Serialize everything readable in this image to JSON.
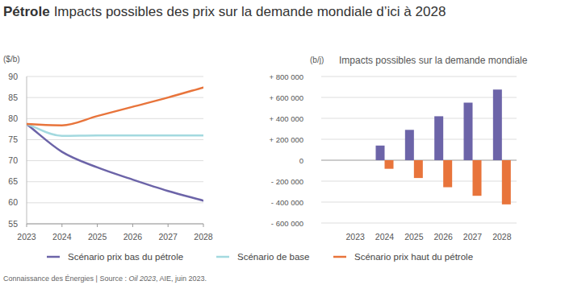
{
  "page": {
    "title_bold": "Pétrole",
    "title": "Impacts possibles des prix sur la demande mondiale d’ici à 2028",
    "source_prefix": "Connaissance des Énergies | Source : ",
    "source_italic": "Oil 2023",
    "source_suffix": ", AIE, juin 2023."
  },
  "chart_data": [
    {
      "type": "line",
      "y_label": "($/b)",
      "x": [
        2023,
        2024,
        2025,
        2026,
        2027,
        2028
      ],
      "xlim": [
        2023,
        2028
      ],
      "xticks": [
        2023,
        2024,
        2025,
        2026,
        2027,
        2028
      ],
      "ylim": [
        55,
        90
      ],
      "yticks": [
        55,
        60,
        65,
        70,
        75,
        80,
        85,
        90
      ],
      "grid": true,
      "legend": "bottom",
      "series": [
        {
          "name": "Scénario prix bas du pétrole",
          "color": "#6c64a8",
          "values": [
            78.7,
            72.1,
            68.4,
            65.5,
            62.8,
            60.5
          ]
        },
        {
          "name": "Scénario de base",
          "color": "#a3d9df",
          "values": [
            78.7,
            75.9,
            76.0,
            76.0,
            76.0,
            76.0
          ]
        },
        {
          "name": "Scénario prix haut du pétrole",
          "color": "#e8743b",
          "values": [
            78.7,
            78.4,
            80.6,
            82.8,
            85.0,
            87.4
          ]
        }
      ]
    },
    {
      "type": "bar",
      "subtitle": "Impacts possibles sur la demande mondiale",
      "y_label": "(b/j)",
      "categories": [
        "2023",
        "2024",
        "2025",
        "2026",
        "2027",
        "2028"
      ],
      "ylim": [
        -600000,
        800000
      ],
      "yticks": [
        {
          "value": -600000,
          "label": "- 600 000"
        },
        {
          "value": -400000,
          "label": "- 400 000"
        },
        {
          "value": -200000,
          "label": "- 200 000"
        },
        0,
        {
          "value": 200000,
          "label": "+ 200 000"
        },
        {
          "value": 400000,
          "label": "+ 400 000"
        },
        {
          "value": 600000,
          "label": "+ 600 000"
        },
        {
          "value": 800000,
          "label": "+ 800 000"
        }
      ],
      "grid": true,
      "series": [
        {
          "color": "#6c64a8",
          "values": [
            null,
            140000,
            290000,
            420000,
            550000,
            675000
          ]
        },
        {
          "color": "#e8743b",
          "values": [
            null,
            -82000,
            -170000,
            -258000,
            -340000,
            -422000
          ]
        }
      ]
    }
  ]
}
